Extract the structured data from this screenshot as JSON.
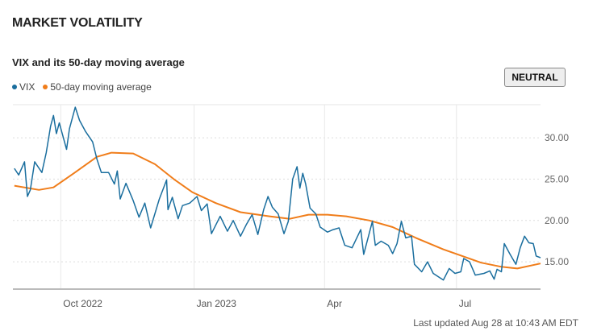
{
  "header": {
    "title": "MARKET VOLATILITY",
    "subtitle": "VIX and its 50-day moving average",
    "status_button": "NEUTRAL"
  },
  "footer": {
    "updated": "Last updated Aug 28 at 10:43 AM EDT"
  },
  "colors": {
    "vix": "#1a6e9e",
    "ma": "#f07d1a",
    "grid": "#dddddd"
  },
  "chart_data": {
    "type": "line",
    "title": "VIX and its 50-day moving average",
    "legend": "top-left",
    "grid": true,
    "ylim": [
      11.8,
      34
    ],
    "xlim": [
      "2022-08-29",
      "2023-08-28"
    ],
    "y_ticks": [
      {
        "value": 30,
        "label": "30.00"
      },
      {
        "value": 25,
        "label": "25.00"
      },
      {
        "value": 20,
        "label": "20.00"
      },
      {
        "value": 15,
        "label": "15.00"
      }
    ],
    "x_ticks": [
      {
        "date": "2022-10-01",
        "label": "Oct 2022"
      },
      {
        "date": "2023-01-01",
        "label": "Jan 2023"
      },
      {
        "date": "2023-04-01",
        "label": "Apr"
      },
      {
        "date": "2023-07-01",
        "label": "Jul"
      }
    ],
    "series": [
      {
        "name": "VIX",
        "points": [
          [
            "2022-08-30",
            26.3
          ],
          [
            "2022-09-02",
            25.5
          ],
          [
            "2022-09-06",
            27.1
          ],
          [
            "2022-09-08",
            22.9
          ],
          [
            "2022-09-10",
            23.7
          ],
          [
            "2022-09-13",
            27.1
          ],
          [
            "2022-09-18",
            25.8
          ],
          [
            "2022-09-21",
            28.2
          ],
          [
            "2022-09-24",
            31.4
          ],
          [
            "2022-09-26",
            32.7
          ],
          [
            "2022-09-28",
            30.5
          ],
          [
            "2022-09-30",
            31.8
          ],
          [
            "2022-10-05",
            28.6
          ],
          [
            "2022-10-07",
            31.1
          ],
          [
            "2022-10-11",
            33.7
          ],
          [
            "2022-10-14",
            32.1
          ],
          [
            "2022-10-18",
            30.8
          ],
          [
            "2022-10-23",
            29.5
          ],
          [
            "2022-10-26",
            27.4
          ],
          [
            "2022-10-29",
            25.8
          ],
          [
            "2022-11-03",
            25.8
          ],
          [
            "2022-11-07",
            24.4
          ],
          [
            "2022-11-09",
            26.0
          ],
          [
            "2022-11-11",
            22.6
          ],
          [
            "2022-11-15",
            24.5
          ],
          [
            "2022-11-20",
            22.4
          ],
          [
            "2022-11-24",
            20.4
          ],
          [
            "2022-11-28",
            22.1
          ],
          [
            "2022-12-02",
            19.1
          ],
          [
            "2022-12-08",
            22.6
          ],
          [
            "2022-12-13",
            24.9
          ],
          [
            "2022-12-14",
            21.3
          ],
          [
            "2022-12-17",
            22.8
          ],
          [
            "2022-12-21",
            20.2
          ],
          [
            "2022-12-24",
            21.8
          ],
          [
            "2022-12-29",
            22.1
          ],
          [
            "2023-01-03",
            22.9
          ],
          [
            "2023-01-06",
            21.2
          ],
          [
            "2023-01-10",
            22.0
          ],
          [
            "2023-01-13",
            18.4
          ],
          [
            "2023-01-19",
            20.5
          ],
          [
            "2023-01-24",
            18.7
          ],
          [
            "2023-01-28",
            20.0
          ],
          [
            "2023-02-02",
            18.1
          ],
          [
            "2023-02-06",
            19.5
          ],
          [
            "2023-02-10",
            20.7
          ],
          [
            "2023-02-14",
            18.3
          ],
          [
            "2023-02-18",
            21.3
          ],
          [
            "2023-02-21",
            22.9
          ],
          [
            "2023-02-24",
            21.6
          ],
          [
            "2023-02-28",
            20.8
          ],
          [
            "2023-03-04",
            18.4
          ],
          [
            "2023-03-07",
            19.9
          ],
          [
            "2023-03-10",
            25.0
          ],
          [
            "2023-03-13",
            26.5
          ],
          [
            "2023-03-15",
            23.9
          ],
          [
            "2023-03-17",
            25.7
          ],
          [
            "2023-03-19",
            24.4
          ],
          [
            "2023-03-22",
            21.5
          ],
          [
            "2023-03-26",
            20.8
          ],
          [
            "2023-03-29",
            19.2
          ],
          [
            "2023-04-03",
            18.6
          ],
          [
            "2023-04-07",
            18.9
          ],
          [
            "2023-04-11",
            19.1
          ],
          [
            "2023-04-15",
            17.0
          ],
          [
            "2023-04-20",
            16.7
          ],
          [
            "2023-04-26",
            18.9
          ],
          [
            "2023-04-28",
            15.9
          ],
          [
            "2023-05-04",
            19.9
          ],
          [
            "2023-05-06",
            17.0
          ],
          [
            "2023-05-10",
            17.5
          ],
          [
            "2023-05-15",
            17.0
          ],
          [
            "2023-05-18",
            16.0
          ],
          [
            "2023-05-21",
            17.2
          ],
          [
            "2023-05-24",
            19.9
          ],
          [
            "2023-05-27",
            17.9
          ],
          [
            "2023-05-31",
            18.1
          ],
          [
            "2023-06-02",
            14.7
          ],
          [
            "2023-06-07",
            13.8
          ],
          [
            "2023-06-11",
            15.0
          ],
          [
            "2023-06-15",
            13.6
          ],
          [
            "2023-06-22",
            12.8
          ],
          [
            "2023-06-26",
            14.2
          ],
          [
            "2023-06-30",
            13.6
          ],
          [
            "2023-07-04",
            13.8
          ],
          [
            "2023-07-06",
            15.4
          ],
          [
            "2023-07-10",
            15.0
          ],
          [
            "2023-07-14",
            13.4
          ],
          [
            "2023-07-20",
            13.6
          ],
          [
            "2023-07-24",
            13.9
          ],
          [
            "2023-07-27",
            12.9
          ],
          [
            "2023-07-29",
            14.1
          ],
          [
            "2023-08-01",
            13.8
          ],
          [
            "2023-08-03",
            17.2
          ],
          [
            "2023-08-07",
            15.9
          ],
          [
            "2023-08-11",
            14.7
          ],
          [
            "2023-08-14",
            16.7
          ],
          [
            "2023-08-17",
            18.1
          ],
          [
            "2023-08-20",
            17.3
          ],
          [
            "2023-08-23",
            17.2
          ],
          [
            "2023-08-25",
            15.7
          ],
          [
            "2023-08-28",
            15.5
          ]
        ]
      },
      {
        "name": "50-day moving average",
        "points": [
          [
            "2022-08-30",
            24.2
          ],
          [
            "2022-09-16",
            23.7
          ],
          [
            "2022-09-26",
            24.0
          ],
          [
            "2022-10-10",
            25.7
          ],
          [
            "2022-10-26",
            27.7
          ],
          [
            "2022-11-05",
            28.2
          ],
          [
            "2022-11-20",
            28.1
          ],
          [
            "2022-12-05",
            26.8
          ],
          [
            "2022-12-18",
            25.0
          ],
          [
            "2022-12-31",
            23.4
          ],
          [
            "2023-01-16",
            22.1
          ],
          [
            "2023-02-02",
            21.0
          ],
          [
            "2023-02-22",
            20.5
          ],
          [
            "2023-03-08",
            20.2
          ],
          [
            "2023-03-21",
            20.7
          ],
          [
            "2023-04-03",
            20.7
          ],
          [
            "2023-04-16",
            20.5
          ],
          [
            "2023-05-02",
            20.0
          ],
          [
            "2023-05-18",
            19.2
          ],
          [
            "2023-06-03",
            17.9
          ],
          [
            "2023-06-22",
            16.5
          ],
          [
            "2023-07-05",
            15.7
          ],
          [
            "2023-07-18",
            14.9
          ],
          [
            "2023-08-01",
            14.4
          ],
          [
            "2023-08-12",
            14.2
          ],
          [
            "2023-08-28",
            14.8
          ]
        ]
      }
    ]
  }
}
